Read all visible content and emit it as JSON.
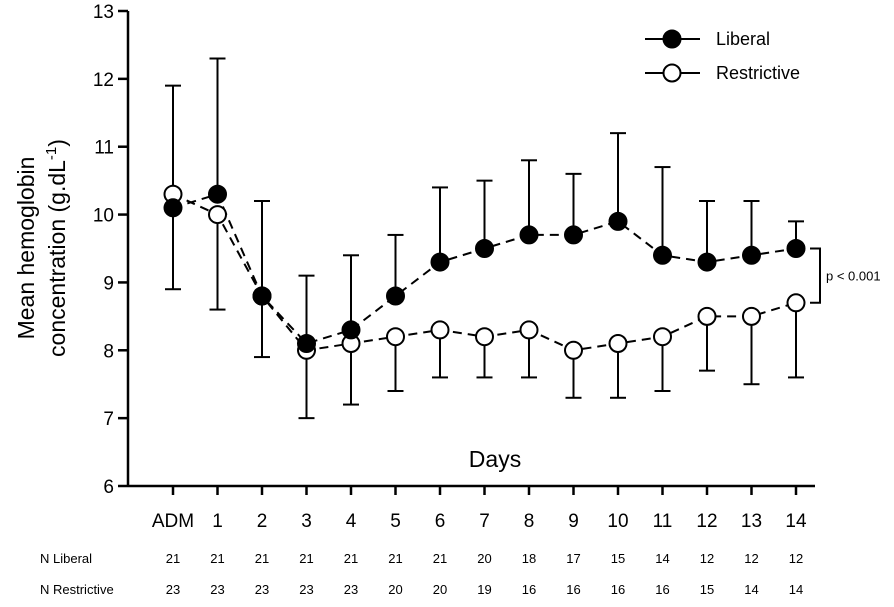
{
  "chart_data": {
    "type": "line",
    "xlabel": "Days",
    "ylabel_line1": "Mean hemoglobin",
    "ylabel_line2_base": "concentration (g.dL",
    "ylabel_sup": "-1",
    "ylabel_close": ")",
    "ylim": [
      6,
      13
    ],
    "yticks": [
      "6",
      "7",
      "8",
      "9",
      "10",
      "11",
      "12",
      "13"
    ],
    "categories": [
      "ADM",
      "1",
      "2",
      "3",
      "4",
      "5",
      "6",
      "7",
      "8",
      "9",
      "10",
      "11",
      "12",
      "13",
      "14"
    ],
    "series": [
      {
        "name": "Liberal",
        "marker": "filled-circle",
        "values": [
          10.1,
          10.3,
          8.8,
          8.1,
          8.3,
          8.8,
          9.3,
          9.5,
          9.7,
          9.7,
          9.9,
          9.4,
          9.3,
          9.4,
          9.5
        ],
        "error_upper": [
          11.9,
          12.3,
          10.2,
          9.1,
          9.4,
          9.7,
          10.4,
          10.5,
          10.8,
          10.6,
          11.2,
          10.7,
          10.2,
          10.2,
          9.9
        ],
        "error_lower": [
          8.9,
          null,
          null,
          null,
          null,
          null,
          null,
          null,
          null,
          null,
          null,
          null,
          null,
          null,
          null
        ]
      },
      {
        "name": "Restrictive",
        "marker": "open-circle",
        "values": [
          10.3,
          10.0,
          8.8,
          8.0,
          8.1,
          8.2,
          8.3,
          8.2,
          8.3,
          8.0,
          8.1,
          8.2,
          8.5,
          8.5,
          8.7
        ],
        "error_upper": [
          null,
          null,
          null,
          null,
          null,
          null,
          null,
          null,
          null,
          null,
          null,
          null,
          null,
          null,
          null
        ],
        "error_lower": [
          null,
          8.6,
          7.9,
          7.0,
          7.2,
          7.4,
          7.6,
          7.6,
          7.6,
          7.3,
          7.3,
          7.4,
          7.7,
          7.5,
          7.6
        ]
      }
    ],
    "legend_position": "top-right",
    "annotation": "p < 0.001",
    "n_table": [
      {
        "label": "N Liberal",
        "values": [
          "21",
          "21",
          "21",
          "21",
          "21",
          "21",
          "21",
          "20",
          "18",
          "17",
          "15",
          "14",
          "12",
          "12",
          "12"
        ]
      },
      {
        "label": "N Restrictive",
        "values": [
          "23",
          "23",
          "23",
          "23",
          "23",
          "20",
          "20",
          "19",
          "16",
          "16",
          "16",
          "16",
          "15",
          "14",
          "14"
        ]
      }
    ],
    "colors": {
      "line": "#000000",
      "marker_fill": "#000000",
      "open_fill": "#ffffff"
    }
  }
}
